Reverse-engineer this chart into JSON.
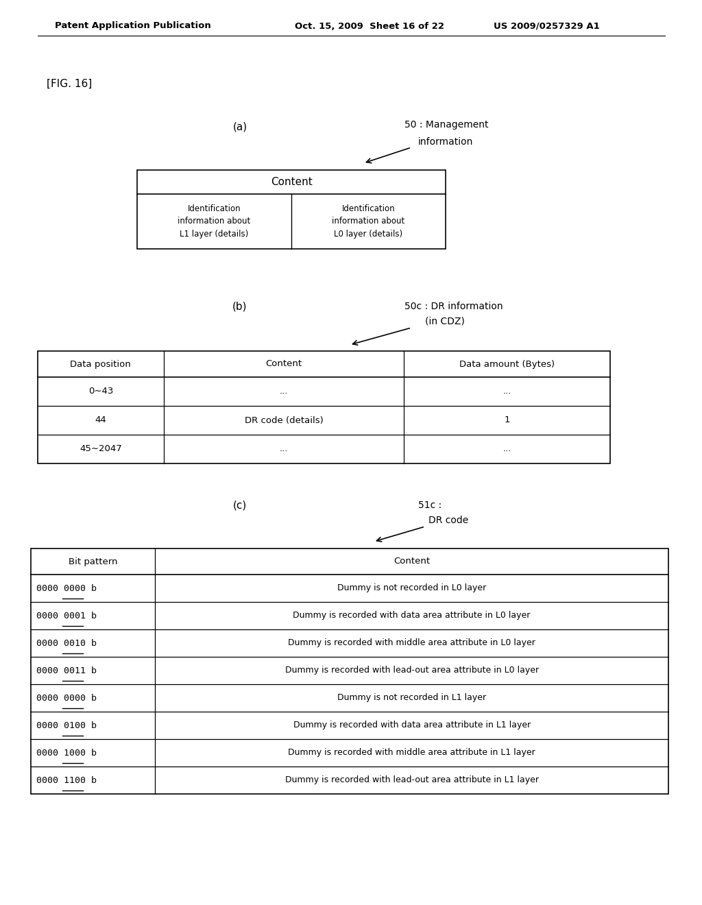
{
  "bg_color": "#ffffff",
  "header_text_left": "Patent Application Publication",
  "header_text_mid": "Oct. 15, 2009  Sheet 16 of 22",
  "header_text_right": "US 2009/0257329 A1",
  "fig_label": "[FIG. 16]",
  "section_a_label": "(a)",
  "section_b_label": "(b)",
  "section_c_label": "(c)",
  "table_a_header": "Content",
  "table_a_cell_left": "Identification\ninformation about\nL1 layer (details)",
  "table_a_cell_right": "Identification\ninformation about\nL0 layer (details)",
  "label_50": "50 : Management",
  "label_50b": "information",
  "label_50c_a": "50c : DR information",
  "label_50c_b": "(in CDZ)",
  "label_51c_a": "51c :",
  "label_51c_b": "DR code",
  "table_b_headers": [
    "Data position",
    "Content",
    "Data amount (Bytes)"
  ],
  "table_b_rows": [
    [
      "0∼43",
      "...",
      "..."
    ],
    [
      "44",
      "DR code (details)",
      "1"
    ],
    [
      "45∼2047",
      "...",
      "..."
    ]
  ],
  "table_c_headers": [
    "Bit pattern",
    "Content"
  ],
  "table_c_rows": [
    [
      "0000 0000 b",
      "Dummy is not recorded in L0 layer"
    ],
    [
      "0000 0001 b",
      "Dummy is recorded with data area attribute in L0 layer"
    ],
    [
      "0000 0010 b",
      "Dummy is recorded with middle area attribute in L0 layer"
    ],
    [
      "0000 0011 b",
      "Dummy is recorded with lead-out area attribute in L0 layer"
    ],
    [
      "0000 0000 b",
      "Dummy is not recorded in L1 layer"
    ],
    [
      "0000 0100 b",
      "Dummy is recorded with data area attribute in L1 layer"
    ],
    [
      "0000 1000 b",
      "Dummy is recorded with middle area attribute in L1 layer"
    ],
    [
      "0000 1100 b",
      "Dummy is recorded with lead-out area attribute in L1 layer"
    ]
  ]
}
